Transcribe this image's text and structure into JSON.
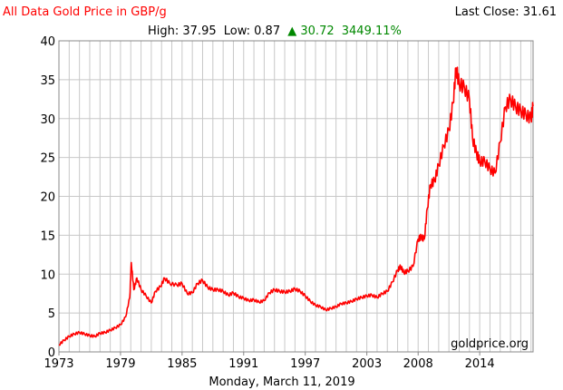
{
  "header": {
    "title": "All Data Gold Price in GBP/g",
    "last_close": "Last Close: 31.61",
    "high_label": "High: 37.95",
    "low_label": "Low: 0.87",
    "change_arrow": "▲",
    "change_value": "30.72",
    "change_percent": "3449.11%"
  },
  "footer": {
    "date": "Monday, March 11, 2019"
  },
  "watermark": "goldprice.org",
  "chart_data": {
    "type": "line",
    "title": "All Data Gold Price in GBP/g",
    "xlabel": "",
    "ylabel": "",
    "xlim": [
      1973.0,
      2019.2
    ],
    "ylim": [
      0,
      40
    ],
    "y_ticks": [
      0,
      5,
      10,
      15,
      20,
      25,
      30,
      35,
      40
    ],
    "x_tick_labels": [
      "1973",
      "1979",
      "1985",
      "1991",
      "1997",
      "2003",
      "2008",
      "2014"
    ],
    "x_tick_positions": [
      1973,
      1979,
      1985,
      1991,
      1997,
      2003,
      2008,
      2014
    ],
    "grid": true,
    "line_color": "#ff0000",
    "series": [
      {
        "x": [
          1973.0,
          1973.5,
          1974.0,
          1974.5,
          1975.0,
          1975.5,
          1976.0,
          1976.5,
          1977.0,
          1977.5,
          1978.0,
          1978.5,
          1979.0,
          1979.5,
          1979.9,
          1980.05,
          1980.3,
          1980.6,
          1981.0,
          1981.5,
          1982.0,
          1982.4,
          1982.9,
          1983.3,
          1983.8,
          1984.5,
          1985.0,
          1985.5,
          1986.0,
          1986.5,
          1987.0,
          1987.5,
          1988.0,
          1988.5,
          1989.0,
          1989.5,
          1990.0,
          1990.5,
          1991.0,
          1991.5,
          1992.0,
          1992.5,
          1993.0,
          1993.5,
          1994.0,
          1994.5,
          1995.0,
          1995.5,
          1996.0,
          1996.5,
          1997.0,
          1997.5,
          1998.0,
          1998.5,
          1999.0,
          1999.5,
          2000.0,
          2000.5,
          2001.0,
          2001.5,
          2002.0,
          2002.5,
          2003.0,
          2003.5,
          2004.0,
          2004.5,
          2005.0,
          2005.5,
          2006.0,
          2006.3,
          2006.6,
          2007.0,
          2007.5,
          2008.0,
          2008.3,
          2008.6,
          2008.9,
          2009.2,
          2009.6,
          2010.0,
          2010.5,
          2011.0,
          2011.4,
          2011.7,
          2012.0,
          2012.5,
          2013.0,
          2013.3,
          2013.7,
          2014.0,
          2014.5,
          2015.0,
          2015.5,
          2016.0,
          2016.5,
          2017.0,
          2017.5,
          2018.0,
          2018.5,
          2019.0,
          2019.2
        ],
        "y": [
          0.9,
          1.5,
          2.0,
          2.3,
          2.5,
          2.3,
          2.1,
          2.0,
          2.4,
          2.5,
          2.8,
          3.1,
          3.5,
          4.5,
          7.0,
          11.5,
          8.0,
          9.5,
          8.0,
          7.2,
          6.3,
          7.8,
          8.4,
          9.5,
          8.8,
          8.6,
          8.8,
          7.5,
          7.6,
          8.8,
          9.2,
          8.3,
          8.0,
          8.0,
          7.8,
          7.3,
          7.6,
          7.1,
          6.9,
          6.6,
          6.7,
          6.4,
          6.6,
          7.6,
          8.0,
          7.8,
          7.7,
          7.8,
          8.1,
          7.8,
          7.2,
          6.5,
          6.0,
          5.8,
          5.4,
          5.6,
          5.8,
          6.2,
          6.3,
          6.5,
          6.8,
          7.0,
          7.2,
          7.3,
          7.0,
          7.5,
          7.8,
          9.0,
          10.5,
          11.0,
          10.2,
          10.4,
          11.0,
          14.5,
          14.8,
          14.5,
          18.5,
          21.5,
          22.0,
          24.0,
          26.5,
          28.5,
          32.0,
          36.5,
          34.5,
          34.0,
          32.5,
          27.5,
          25.5,
          24.5,
          24.5,
          23.5,
          23.0,
          27.0,
          31.5,
          32.5,
          31.5,
          31.0,
          30.5,
          30.0,
          31.6
        ]
      }
    ]
  }
}
